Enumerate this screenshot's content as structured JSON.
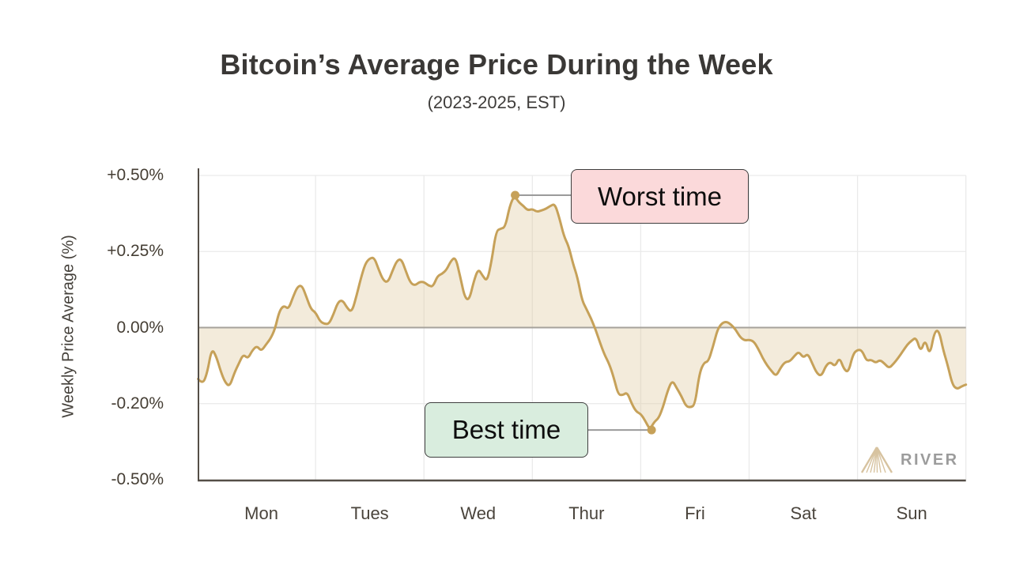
{
  "header": {
    "title": "Bitcoin’s Average Price During the Week",
    "subtitle": "(2023-2025, EST)"
  },
  "branding": {
    "name": "RIVER",
    "icon": "pyramid-icon",
    "text_color": "#9c9c9c",
    "icon_color": "#d7c3a0"
  },
  "chart_data": {
    "type": "area",
    "title": "Bitcoin’s Average Price During the Week",
    "subtitle": "(2023-2025, EST)",
    "ylabel": "Weekly Price Average (%)",
    "xlabel": "",
    "grid": true,
    "legend": false,
    "ylim": [
      -0.5,
      0.5
    ],
    "yticks": [
      {
        "value": 0.5,
        "label": "+0.50%"
      },
      {
        "value": 0.25,
        "label": "+0.25%"
      },
      {
        "value": 0.0,
        "label": "0.00%"
      },
      {
        "value": -0.2,
        "label": "-0.20%"
      },
      {
        "value": -0.5,
        "label": "-0.50%"
      }
    ],
    "categories": [
      "Mon",
      "Tues",
      "Wed",
      "Thur",
      "Fri",
      "Sat",
      "Sun"
    ],
    "x_unit": "hour_of_week",
    "x_start_hour": -2,
    "interval_hours": 1,
    "series": [
      {
        "name": "weekly_price_average_pct",
        "values": [
          -0.135,
          -0.15,
          -0.12,
          -0.055,
          -0.075,
          -0.115,
          -0.145,
          -0.155,
          -0.12,
          -0.095,
          -0.07,
          -0.082,
          -0.06,
          -0.048,
          -0.062,
          -0.045,
          -0.03,
          -0.005,
          0.055,
          0.073,
          0.06,
          0.1,
          0.135,
          0.139,
          0.1,
          0.06,
          0.05,
          0.02,
          0.012,
          0.012,
          0.045,
          0.085,
          0.09,
          0.065,
          0.05,
          0.1,
          0.16,
          0.21,
          0.228,
          0.23,
          0.19,
          0.155,
          0.148,
          0.185,
          0.22,
          0.226,
          0.185,
          0.147,
          0.138,
          0.15,
          0.15,
          0.138,
          0.134,
          0.17,
          0.176,
          0.19,
          0.22,
          0.232,
          0.17,
          0.1,
          0.089,
          0.15,
          0.194,
          0.17,
          0.151,
          0.22,
          0.318,
          0.325,
          0.33,
          0.4,
          0.434,
          0.412,
          0.4,
          0.385,
          0.39,
          0.38,
          0.385,
          0.39,
          0.4,
          0.407,
          0.36,
          0.3,
          0.27,
          0.21,
          0.165,
          0.09,
          0.06,
          0.03,
          -0.005,
          -0.04,
          -0.072,
          -0.095,
          -0.13,
          -0.176,
          -0.178,
          -0.17,
          -0.2,
          -0.232,
          -0.24,
          -0.268,
          -0.302,
          -0.272,
          -0.257,
          -0.21,
          -0.165,
          -0.138,
          -0.16,
          -0.18,
          -0.21,
          -0.215,
          -0.205,
          -0.12,
          -0.092,
          -0.089,
          -0.05,
          -0.005,
          0.015,
          0.02,
          0.01,
          -0.005,
          -0.025,
          -0.034,
          -0.032,
          -0.036,
          -0.055,
          -0.08,
          -0.1,
          -0.115,
          -0.128,
          -0.105,
          -0.09,
          -0.089,
          -0.075,
          -0.063,
          -0.08,
          -0.068,
          -0.095,
          -0.12,
          -0.128,
          -0.1,
          -0.09,
          -0.103,
          -0.078,
          -0.11,
          -0.118,
          -0.07,
          -0.058,
          -0.06,
          -0.088,
          -0.084,
          -0.093,
          -0.085,
          -0.095,
          -0.107,
          -0.095,
          -0.08,
          -0.063,
          -0.045,
          -0.034,
          -0.026,
          -0.065,
          -0.03,
          -0.075,
          -0.012,
          -0.006,
          -0.06,
          -0.1,
          -0.15,
          -0.162,
          -0.155,
          -0.15
        ]
      }
    ],
    "annotations": [
      {
        "label": "Worst time",
        "hour": 68.2,
        "value": 0.435,
        "box_color": "#fbd9da"
      },
      {
        "label": "Best time",
        "hour": 98.4,
        "value": -0.304,
        "box_color": "#d9edde"
      }
    ],
    "colors": {
      "line": "#c6a159",
      "fill": "rgba(224,205,164,0.40)",
      "grid": "#eaeaea",
      "zero_line": "#a6a29b",
      "axis": "#544e47",
      "connector": "#9a9a9a",
      "marker": "#c6a159"
    }
  }
}
